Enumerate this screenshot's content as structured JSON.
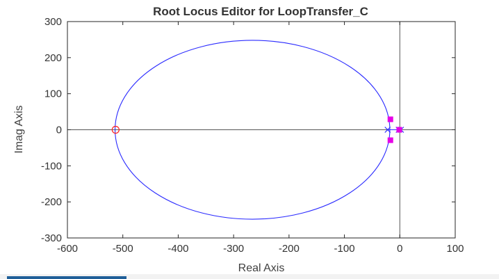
{
  "window": {
    "title": "Root Locus Editor for LoopTransfer_C"
  },
  "chart_data": {
    "type": "scatter",
    "title": "Root Locus Editor for LoopTransfer_C",
    "xlabel": "Real Axis",
    "ylabel": "Imag Axis",
    "xlim": [
      -600,
      100
    ],
    "ylim": [
      -300,
      300
    ],
    "xticks": [
      -600,
      -500,
      -400,
      -300,
      -200,
      -100,
      0,
      100
    ],
    "yticks": [
      -300,
      -200,
      -100,
      0,
      100,
      200,
      300
    ],
    "xticklabels": [
      "-600",
      "-500",
      "-400",
      "-300",
      "-200",
      "-100",
      "0",
      "100"
    ],
    "yticklabels": [
      "-300",
      "-200",
      "-100",
      "0",
      "100",
      "200",
      "300"
    ],
    "grid": false,
    "locus_color": "#2b2bff",
    "locus_circle": {
      "center": [
        -266,
        0
      ],
      "radius_x": 248,
      "radius_y": 248
    },
    "poles": [
      {
        "re": -22,
        "im": 0
      },
      {
        "re": -2,
        "im": 0
      },
      {
        "re": 2,
        "im": 0
      }
    ],
    "zeros": [
      {
        "re": -513,
        "im": 0
      }
    ],
    "closed_loop_poles": [
      {
        "re": -17,
        "im": 29
      },
      {
        "re": -17,
        "im": -29
      },
      {
        "re": -1,
        "im": 0
      }
    ],
    "colors": {
      "locus": "#2b2bff",
      "pole": "#2b2bff",
      "zero": "#ff2020",
      "closed_loop_pole": "#e600e6",
      "axis_lines": "#555555"
    }
  }
}
